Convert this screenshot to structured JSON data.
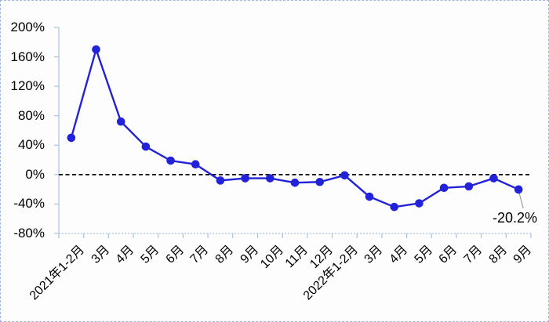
{
  "chart_data": {
    "type": "line",
    "categories": [
      "2021年1-2月",
      "3月",
      "4月",
      "5月",
      "6月",
      "7月",
      "8月",
      "9月",
      "10月",
      "11月",
      "12月",
      "2022年1-2月",
      "3月",
      "4月",
      "5月",
      "6月",
      "7月",
      "8月",
      "9月"
    ],
    "values": [
      50,
      170,
      72,
      38,
      19,
      14,
      -8,
      -5,
      -5,
      -11,
      -10,
      -1,
      -30,
      -44,
      -39,
      -18,
      -16,
      -5,
      -20.2
    ],
    "ylim": [
      -80,
      200
    ],
    "yticks": {
      "values": [
        200,
        160,
        120,
        80,
        40,
        0,
        -40,
        -80
      ],
      "labels": [
        "200%",
        "160%",
        "120%",
        "80%",
        "40%",
        "0%",
        "-40%",
        "-80%"
      ]
    },
    "grid": false,
    "legend": "none",
    "zero_line": "dashed",
    "annotation": {
      "text": "-20.2%",
      "index": 18
    },
    "colors": {
      "line": "#2222d8",
      "marker": "#2222d8",
      "axis": "#a9c2e2",
      "zero_line": "#000000",
      "leader": "#8c8c8c",
      "text": "#000000",
      "frame_border": "#9fb6de",
      "background": "#fdfdfd"
    }
  }
}
